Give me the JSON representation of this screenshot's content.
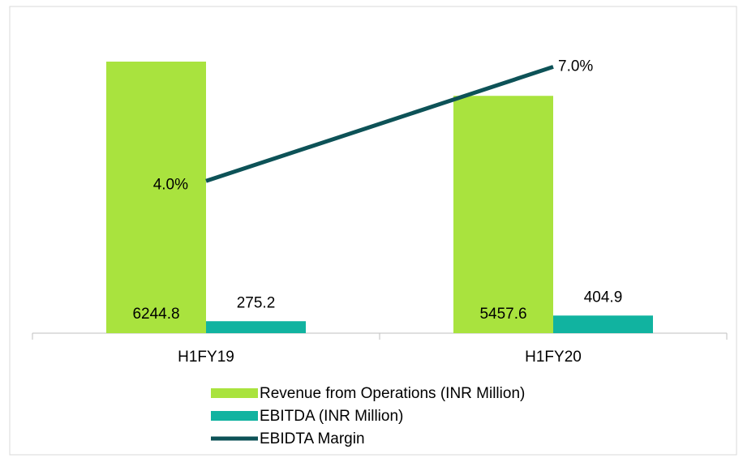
{
  "chart_data": {
    "type": "bar_line",
    "categories": [
      "H1FY19",
      "H1FY20"
    ],
    "series": [
      {
        "name": "Revenue from Operations (INR Million)",
        "color": "#a9e33e",
        "type": "bar",
        "values": [
          6244.8,
          5457.6
        ]
      },
      {
        "name": "EBITDA (INR Million)",
        "color": "#11b3a0",
        "type": "bar",
        "values": [
          275.2,
          404.9
        ]
      },
      {
        "name": "EBIDTA Margin",
        "color": "#0d5257",
        "type": "line",
        "axis": "y2",
        "values": [
          4.0,
          7.0
        ],
        "value_labels": [
          "4.0%",
          "7.0%"
        ]
      }
    ],
    "ylim": [
      0,
      7000
    ],
    "y2lim": [
      0,
      8
    ],
    "legend": "bottom"
  }
}
